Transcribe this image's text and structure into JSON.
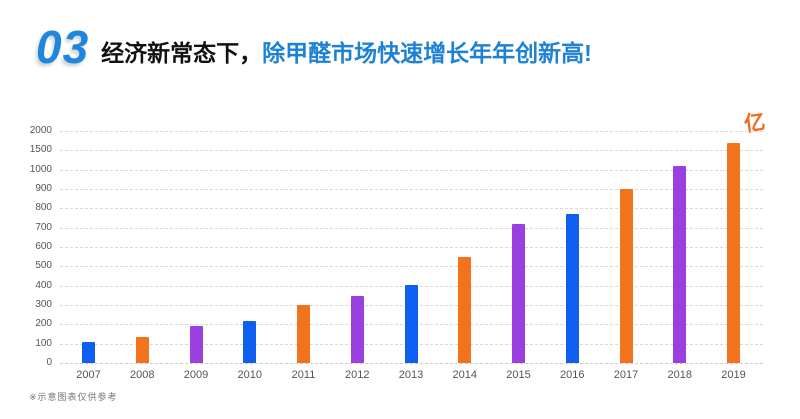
{
  "header": {
    "section_number": "03",
    "title_plain": "经济新常态下，",
    "title_highlight": "除甲醛市场快速增长年年创新高!"
  },
  "footnote": "※示意图表仅供参考",
  "chart_data": {
    "type": "bar",
    "title": "",
    "xlabel": "",
    "ylabel": "",
    "unit_label": "亿",
    "categories": [
      "2007",
      "2008",
      "2009",
      "2010",
      "2011",
      "2012",
      "2013",
      "2014",
      "2015",
      "2016",
      "2017",
      "2018",
      "2019"
    ],
    "values": [
      110,
      135,
      190,
      215,
      300,
      345,
      405,
      550,
      720,
      770,
      900,
      1100,
      1700
    ],
    "bar_colors": [
      "#0e5ef0",
      "#f3731d",
      "#9a3fe0",
      "#0e5ef0",
      "#f3731d",
      "#9a3fe0",
      "#0e5ef0",
      "#f3731d",
      "#9a3fe0",
      "#0e5ef0",
      "#f3731d",
      "#9a3fe0",
      "#f3731d"
    ],
    "y_ticks": [
      0,
      100,
      200,
      300,
      400,
      500,
      600,
      700,
      800,
      900,
      1000,
      1500,
      2000
    ],
    "axis_scale": "non-linear: ticks equally spaced",
    "grid": "horizontal dashed",
    "legend": "none"
  },
  "colors": {
    "accent_blue": "#1e86dc",
    "title_highlight_blue": "#1d82d4",
    "bar_blue": "#0e5ef0",
    "bar_orange": "#f3731d",
    "bar_purple": "#9a3fe0",
    "unit_orange": "#f26a1e",
    "gridline_gray": "#d9d9d9"
  }
}
